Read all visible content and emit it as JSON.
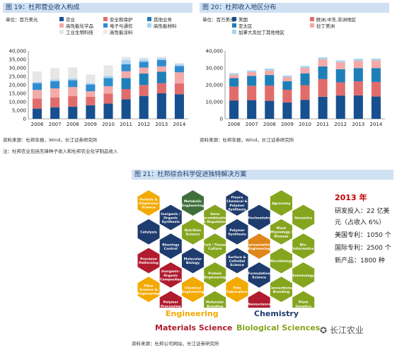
{
  "fig19": {
    "title": "图 19：杜邦营业收入构成",
    "source": "资料来源：杜邦年报，Wind，长江证券研究所",
    "note": "注：杜邦农业包括先锋种子收入和杜邦农业化学制品收入"
  },
  "fig20": {
    "title": "图 20：杜邦收入地区分布",
    "source": "资料来源：杜邦年报，Wind，长江证券研究所"
  },
  "fig21": {
    "title": "图 21：杜邦综合科学促进独特解决方案",
    "source": "资料来源：杜邦公司网站，长江证券研究所",
    "year": "2013 年",
    "facts": [
      "研发投入：22 亿美",
      "元（占收入 6%）",
      "美国专利：1050 个",
      "国际专利：2500 个",
      "新产品：1800 种"
    ],
    "categories": [
      {
        "label": "Engineering",
        "color": "#f2a900"
      },
      {
        "label": "Chemistry",
        "color": "#1f3c6e"
      },
      {
        "label": "Materials Science",
        "color": "#b01c2e"
      },
      {
        "label": "Biological Sciences",
        "color": "#86a51f"
      }
    ],
    "hexes": [
      {
        "text": [
          "Particle &",
          "Dispersion",
          "Science"
        ],
        "color": "#f2a900"
      },
      {
        "text": [
          "Inorganic /",
          "Organic",
          "Synthesis"
        ],
        "color": "#1f3c6e"
      },
      {
        "text": [
          "Metabolic",
          "Engineering"
        ],
        "color": "#3f6f3a"
      },
      {
        "text": [
          "Gene",
          "Recombination",
          "& Regulation"
        ],
        "color": "#86a51f"
      },
      {
        "text": [
          "Fluoro",
          "Chemical &",
          "Polymer",
          "Synthesis"
        ],
        "color": "#1f3c6e"
      },
      {
        "text": [
          "Biochemistry"
        ],
        "color": "#1f3c6e"
      },
      {
        "text": [
          "Agronomy"
        ],
        "color": "#86a51f"
      },
      {
        "text": [
          "Genomics"
        ],
        "color": "#86a51f"
      },
      {
        "text": [
          "Catalysis"
        ],
        "color": "#1f3c6e"
      },
      {
        "text": [
          "Rheology",
          "Control"
        ],
        "color": "#1f3c6e"
      },
      {
        "text": [
          "Nutrition",
          "Science"
        ],
        "color": "#86a51f"
      },
      {
        "text": [
          "Cell / Tissue",
          "Culture"
        ],
        "color": "#86a51f"
      },
      {
        "text": [
          "Polymer",
          "Synthesis"
        ],
        "color": "#1f3c6e"
      },
      {
        "text": [
          "Fermentation",
          "Engineering"
        ],
        "color": "#e0871a"
      },
      {
        "text": [
          "Plant",
          "Physiology /",
          "Disease"
        ],
        "color": "#86a51f"
      },
      {
        "text": [
          "Bio-",
          "Informatics"
        ],
        "color": "#86a51f"
      },
      {
        "text": [
          "Precision",
          "Patterning"
        ],
        "color": "#b01c2e"
      },
      {
        "text": [
          "Inorganic-",
          "Organic",
          "Composites"
        ],
        "color": "#b01c2e"
      },
      {
        "text": [
          "Molecular",
          "Biology"
        ],
        "color": "#1f3c6e"
      },
      {
        "text": [
          "Protein",
          "Engineering"
        ],
        "color": "#86a51f"
      },
      {
        "text": [
          "Surface &",
          "Colloidal",
          "Science"
        ],
        "color": "#1f3c6e"
      },
      {
        "text": [
          "Formulation",
          "Science"
        ],
        "color": "#1f3c6e"
      },
      {
        "text": [
          "Microbiology"
        ],
        "color": "#86a51f"
      },
      {
        "text": [
          "Entomology"
        ],
        "color": "#86a51f"
      },
      {
        "text": [
          "Fiber",
          "Science &",
          "Engineering"
        ],
        "color": "#f2a900"
      },
      {
        "text": [
          "Polymer",
          "Processing"
        ],
        "color": "#b01c2e"
      },
      {
        "text": [
          "Chemical",
          "Engineering"
        ],
        "color": "#f2a900"
      },
      {
        "text": [
          "Molecular",
          "Breeding"
        ],
        "color": "#86a51f"
      },
      {
        "text": [
          "Film",
          "Fabrication"
        ],
        "color": "#f2a900"
      },
      {
        "text": [
          "Nanoscience"
        ],
        "color": "#b01c2e"
      },
      {
        "text": [
          "Conventional",
          "Breeding"
        ],
        "color": "#86a51f"
      },
      {
        "text": [
          "Plant",
          "Genetics"
        ],
        "color": "#86a51f"
      }
    ]
  },
  "watermark": "长江农业",
  "chart_data": [
    {
      "type": "bar",
      "stacked": true,
      "title": "图 19：杜邦营业收入构成",
      "unit_label": "单位：百万美元",
      "categories": [
        "2006",
        "2007",
        "2008",
        "2009",
        "2010",
        "2011",
        "2012",
        "2013",
        "2014"
      ],
      "ylim": [
        0,
        40000
      ],
      "yticks": [
        0,
        5000,
        10000,
        15000,
        20000,
        25000,
        30000,
        35000,
        40000
      ],
      "legend_placement": "top",
      "series": [
        {
          "name": "农业",
          "color": "#17508f",
          "values": [
            6000,
            6800,
            7200,
            8000,
            9000,
            11500,
            13500,
            15000,
            14500
          ]
        },
        {
          "name": "安全和保护",
          "color": "#e16c6c",
          "values": [
            6000,
            5800,
            6200,
            5000,
            5900,
            6000,
            6400,
            6000,
            6400
          ]
        },
        {
          "name": "其他业务",
          "color": "#1e7fb8",
          "values": [
            0,
            0,
            0,
            0,
            0,
            6500,
            6800,
            6700,
            0
          ]
        },
        {
          "name": "高性能化学品",
          "color": "#f3aaa8",
          "values": [
            5000,
            5300,
            5300,
            3200,
            4300,
            4000,
            3500,
            3200,
            6500
          ]
        },
        {
          "name": "电子与通信",
          "color": "#2f8ccf",
          "values": [
            4000,
            4300,
            4000,
            4000,
            4800,
            4200,
            3400,
            3800,
            3700
          ]
        },
        {
          "name": "高性能材料",
          "color": "#a9d2ef",
          "values": [
            700,
            1000,
            1100,
            800,
            1200,
            2500,
            1300,
            1000,
            1000
          ]
        },
        {
          "name": "工业生物科技",
          "color": "#e6e6e6",
          "values": [
            6200,
            6600,
            6500,
            5100,
            6300,
            1800,
            1200,
            900,
            800
          ]
        },
        {
          "name": "高性能涂料",
          "color": "#f7e4e4",
          "values": [
            0,
            0,
            0,
            0,
            0,
            0,
            0,
            0,
            0
          ]
        }
      ]
    },
    {
      "type": "bar",
      "stacked": true,
      "title": "图 20：杜邦收入地区分布",
      "unit_label": "单位：百万美元",
      "categories": [
        "2006",
        "2007",
        "2008",
        "2009",
        "2010",
        "2011",
        "2012",
        "2013",
        "2014"
      ],
      "ylim": [
        0,
        40000
      ],
      "yticks": [
        0,
        10000,
        20000,
        30000,
        40000
      ],
      "legend_placement": "top",
      "series": [
        {
          "name": "美国",
          "color": "#17508f",
          "values": [
            10800,
            11000,
            10600,
            9600,
            11200,
            13000,
            13700,
            13800,
            13200
          ]
        },
        {
          "name": "欧洲,中东,非洲地区",
          "color": "#e16c6c",
          "values": [
            8200,
            8500,
            9000,
            7500,
            8600,
            10400,
            7800,
            8300,
            8500
          ]
        },
        {
          "name": "亚太区",
          "color": "#1e7fb8",
          "values": [
            5000,
            5800,
            6200,
            5100,
            7000,
            7500,
            7700,
            7800,
            8200
          ]
        },
        {
          "name": "拉丁美洲",
          "color": "#f3aaa8",
          "values": [
            1900,
            2200,
            2700,
            2400,
            3200,
            4200,
            4200,
            4400,
            4600
          ]
        },
        {
          "name": "加拿大及拉丁其他地区",
          "color": "#a9d2ef",
          "values": [
            1000,
            1000,
            1100,
            900,
            1100,
            1100,
            1000,
            1100,
            1000
          ]
        }
      ]
    }
  ]
}
